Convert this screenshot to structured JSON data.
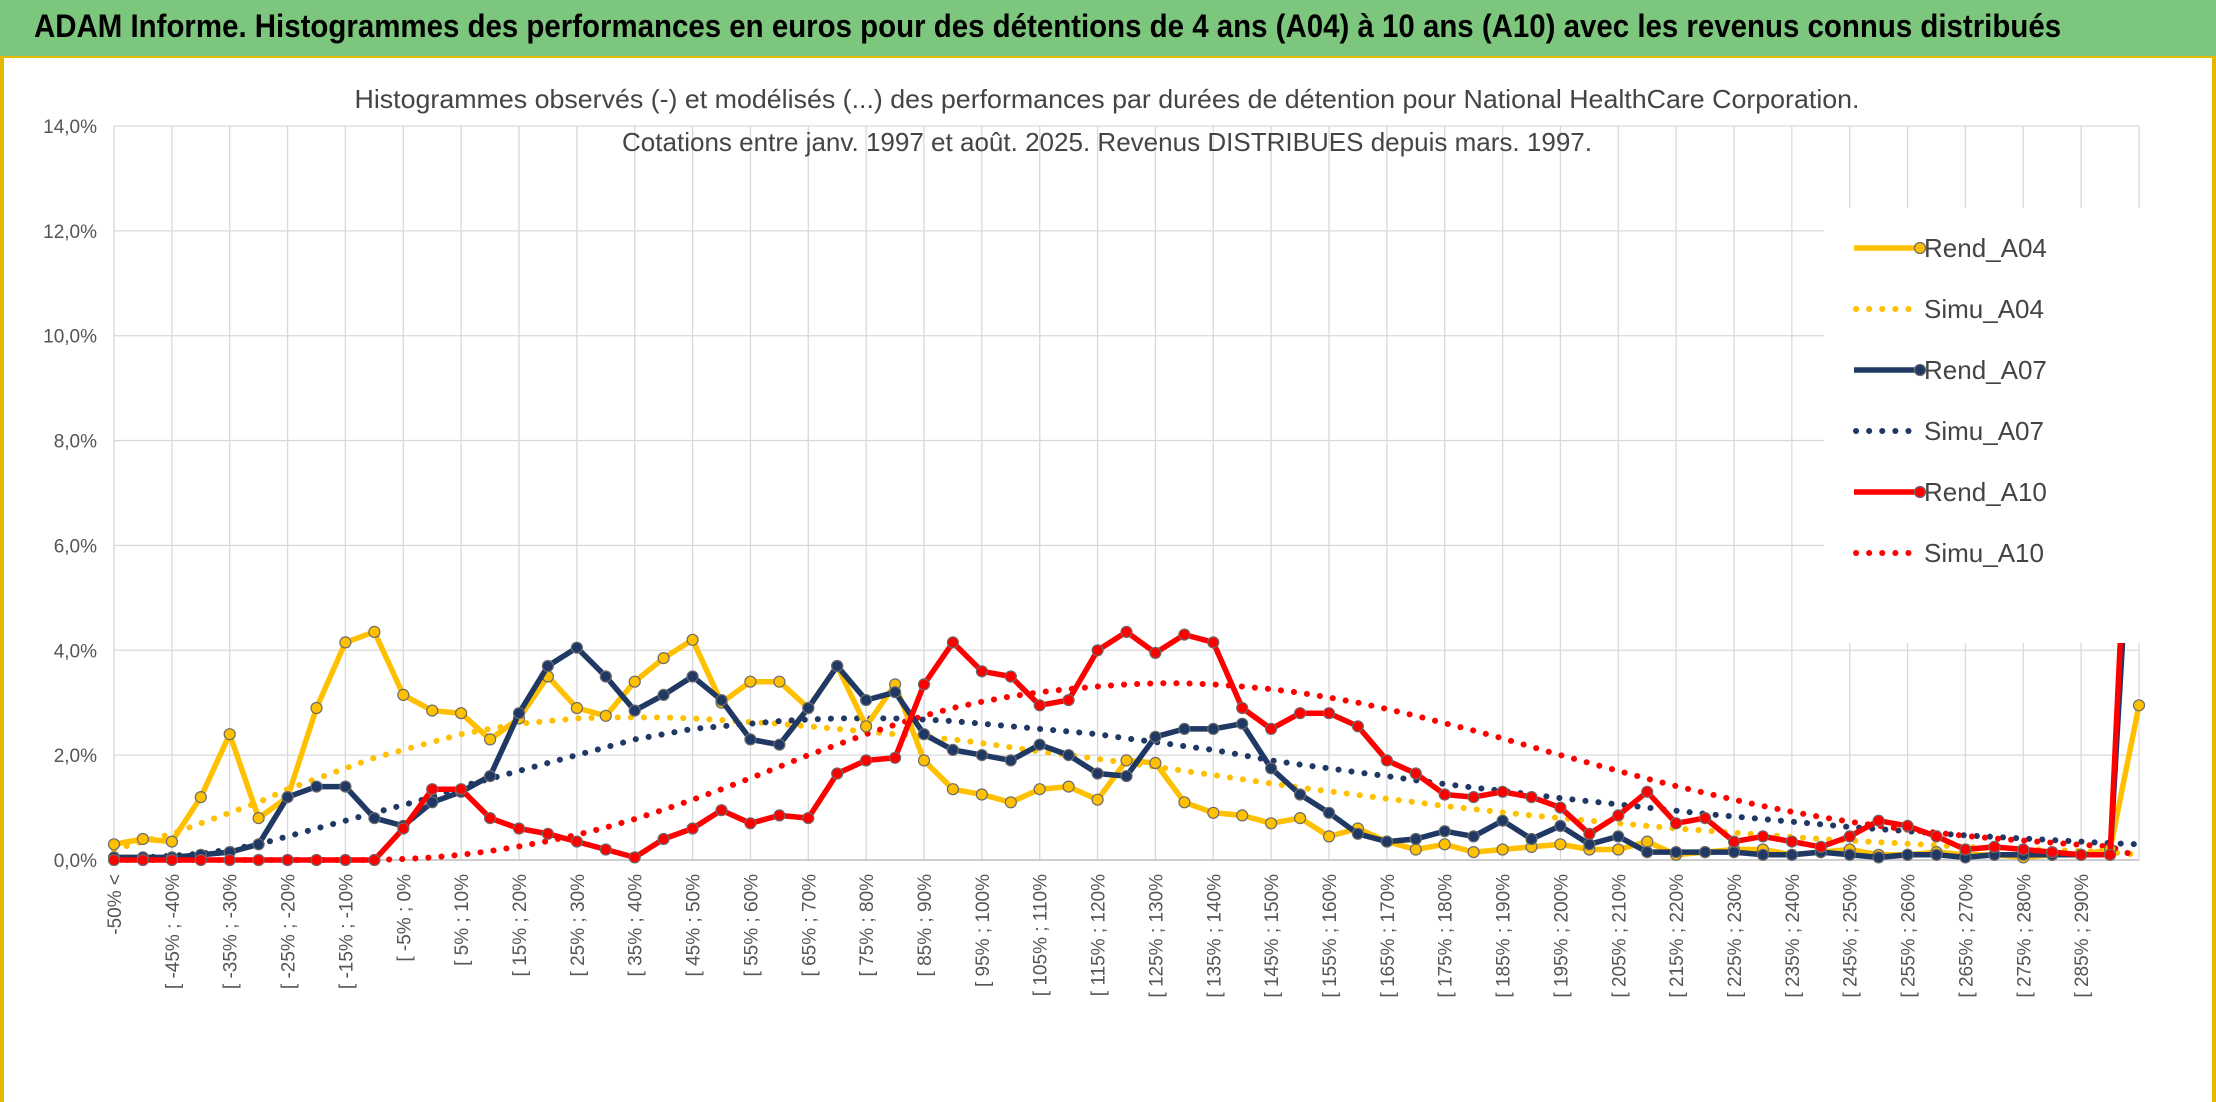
{
  "banner": {
    "title": "ADAM Informe. Histogrammes des performances en euros pour des détentions de 4 ans (A04) à 10 ans (A10) avec les revenus connus distribués"
  },
  "colors": {
    "a04": "#FFC000",
    "a07": "#1F3864",
    "a10": "#FF0000",
    "banner": "#7dc67d"
  },
  "chart_data": {
    "type": "line",
    "title": "Histogrammes observés (-) et modélisés (...) des performances par durées de détention pour National HealthCare Corporation.",
    "subtitle": "Cotations entre janv. 1997 et août. 2025. Revenus DISTRIBUES depuis mars. 1997.",
    "ylim": [
      0,
      14
    ],
    "yticks": [
      "0,0%",
      "2,0%",
      "4,0%",
      "6,0%",
      "8,0%",
      "10,0%",
      "12,0%",
      "14,0%"
    ],
    "grid": true,
    "legend_position": "right",
    "categories": [
      "-50% <",
      "[ -50% ; -45%",
      "[ -45% ; -40%",
      "[ -40% ; -35%",
      "[ -35% ; -30%",
      "[ -30% ; -25%",
      "[ -25% ; -20%",
      "[ -20% ; -15%",
      "[ -15% ; -10%",
      "[ -10% ; -5%",
      "[ -5% ; 0%",
      "[ 0% ; 5%",
      "[ 5% ; 10%",
      "[ 10% ; 15%",
      "[ 15% ; 20%",
      "[ 20% ; 25%",
      "[ 25% ; 30%",
      "[ 30% ; 35%",
      "[ 35% ; 40%",
      "[ 40% ; 45%",
      "[ 45% ; 50%",
      "[ 50% ; 55%",
      "[ 55% ; 60%",
      "[ 60% ; 65%",
      "[ 65% ; 70%",
      "[ 70% ; 75%",
      "[ 75% ; 80%",
      "[ 80% ; 85%",
      "[ 85% ; 90%",
      "[ 90% ; 95%",
      "[ 95% ; 100%",
      "[ 100% ; 105%",
      "[ 105% ; 110%",
      "[ 110% ; 115%",
      "[ 115% ; 120%",
      "[ 120% ; 125%",
      "[ 125% ; 130%",
      "[ 130% ; 135%",
      "[ 135% ; 140%",
      "[ 140% ; 145%",
      "[ 145% ; 150%",
      "[ 150% ; 155%",
      "[ 155% ; 160%",
      "[ 160% ; 165%",
      "[ 165% ; 170%",
      "[ 170% ; 175%",
      "[ 175% ; 180%",
      "[ 180% ; 185%",
      "[ 185% ; 190%",
      "[ 190% ; 195%",
      "[ 195% ; 200%",
      "[ 200% ; 205%",
      "[ 205% ; 210%",
      "[ 210% ; 215%",
      "[ 215% ; 220%",
      "[ 220% ; 225%",
      "[ 225% ; 230%",
      "[ 230% ; 235%",
      "[ 235% ; 240%",
      "[ 240% ; 245%",
      "[ 245% ; 250%",
      "[ 250% ; 255%",
      "[ 255% ; 260%",
      "[ 260% ; 265%",
      "[ 265% ; 270%",
      "[ 270% ; 275%",
      "[ 275% ; 280%",
      "[ 280% ; 285%",
      "[ 285% ; 290%",
      "[ 290% ; 295%",
      "295% <"
    ],
    "visible_tick_labels": [
      "-50% <",
      "[ -45% ; -40%",
      "[ -35% ; -30%",
      "[ -25% ; -20%",
      "[ -15% ; -10%",
      "[ -5% ; 0%",
      "[ 5% ; 10%",
      "[ 15% ; 20%",
      "[ 25% ; 30%",
      "[ 35% ; 40%",
      "[ 45% ; 50%",
      "[ 55% ; 60%",
      "[ 65% ; 70%",
      "[ 75% ; 80%",
      "[ 85% ; 90%",
      "[ 95% ; 100%",
      "[ 105% ; 110%",
      "[ 115% ; 120%",
      "[ 125% ; 130%",
      "[ 135% ; 140%",
      "[ 145% ; 150%",
      "[ 155% ; 160%",
      "[ 165% ; 170%",
      "[ 175% ; 180%",
      "[ 185% ; 190%",
      "[ 195% ; 200%",
      "[ 205% ; 210%",
      "[ 215% ; 220%",
      "[ 225% ; 230%",
      "[ 235% ; 240%",
      "[ 245% ; 250%",
      "[ 255% ; 260%",
      "[ 265% ; 270%",
      "[ 275% ; 280%",
      "[ 285% ; 290%"
    ],
    "series": [
      {
        "name": "Rend_A04",
        "style": "solid",
        "color": "#FFC000",
        "values": [
          0.3,
          0.4,
          0.35,
          1.2,
          2.4,
          0.8,
          1.2,
          2.9,
          4.15,
          4.35,
          3.15,
          2.85,
          2.8,
          2.3,
          2.7,
          3.5,
          2.9,
          2.75,
          3.4,
          3.85,
          4.2,
          3.0,
          3.4,
          3.4,
          2.9,
          3.7,
          2.55,
          3.35,
          1.9,
          1.35,
          1.25,
          1.1,
          1.35,
          1.4,
          1.15,
          1.9,
          1.85,
          1.1,
          0.9,
          0.85,
          0.7,
          0.8,
          0.45,
          0.6,
          0.35,
          0.2,
          0.3,
          0.15,
          0.2,
          0.25,
          0.3,
          0.2,
          0.2,
          0.35,
          0.1,
          0.15,
          0.2,
          0.2,
          0.1,
          0.15,
          0.2,
          0.1,
          0.1,
          0.15,
          0.1,
          0.1,
          0.05,
          0.1,
          0.1,
          0.2,
          2.95
        ]
      },
      {
        "name": "Simu_A04",
        "style": "dotted",
        "color": "#FFC000",
        "values": [
          0.2,
          0.35,
          0.5,
          0.7,
          0.9,
          1.1,
          1.35,
          1.55,
          1.75,
          1.95,
          2.1,
          2.25,
          2.4,
          2.5,
          2.6,
          2.65,
          2.7,
          2.72,
          2.72,
          2.72,
          2.7,
          2.67,
          2.63,
          2.6,
          2.55,
          2.5,
          2.45,
          2.4,
          2.35,
          2.3,
          2.23,
          2.15,
          2.07,
          2.0,
          1.93,
          1.85,
          1.78,
          1.7,
          1.62,
          1.54,
          1.46,
          1.38,
          1.31,
          1.24,
          1.17,
          1.1,
          1.03,
          0.97,
          0.91,
          0.85,
          0.8,
          0.75,
          0.7,
          0.65,
          0.6,
          0.56,
          0.52,
          0.48,
          0.44,
          0.4,
          0.37,
          0.34,
          0.31,
          0.28,
          0.25,
          0.23,
          0.21,
          0.19,
          0.17,
          0.15,
          0.1
        ]
      },
      {
        "name": "Rend_A07",
        "style": "solid",
        "color": "#1F3864",
        "values": [
          0.05,
          0.05,
          0.05,
          0.1,
          0.15,
          0.3,
          1.2,
          1.4,
          1.4,
          0.8,
          0.65,
          1.1,
          1.3,
          1.6,
          2.8,
          3.7,
          4.05,
          3.5,
          2.85,
          3.15,
          3.5,
          3.05,
          2.3,
          2.2,
          2.9,
          3.7,
          3.05,
          3.2,
          2.4,
          2.1,
          2.0,
          1.9,
          2.2,
          2.0,
          1.65,
          1.6,
          2.35,
          2.5,
          2.5,
          2.6,
          1.75,
          1.25,
          0.9,
          0.5,
          0.35,
          0.4,
          0.55,
          0.45,
          0.75,
          0.4,
          0.65,
          0.3,
          0.45,
          0.15,
          0.15,
          0.15,
          0.15,
          0.1,
          0.1,
          0.15,
          0.1,
          0.05,
          0.1,
          0.1,
          0.05,
          0.1,
          0.1,
          0.1,
          0.1,
          0.1,
          9.5
        ]
      },
      {
        "name": "Simu_A07",
        "style": "dotted",
        "color": "#1F3864",
        "values": [
          0.02,
          0.05,
          0.08,
          0.12,
          0.2,
          0.3,
          0.45,
          0.6,
          0.75,
          0.9,
          1.05,
          1.2,
          1.4,
          1.55,
          1.7,
          1.85,
          2.0,
          2.15,
          2.3,
          2.4,
          2.5,
          2.55,
          2.6,
          2.65,
          2.68,
          2.7,
          2.7,
          2.7,
          2.68,
          2.65,
          2.6,
          2.55,
          2.5,
          2.45,
          2.4,
          2.32,
          2.25,
          2.17,
          2.1,
          2.0,
          1.9,
          1.82,
          1.75,
          1.67,
          1.6,
          1.52,
          1.45,
          1.38,
          1.32,
          1.25,
          1.18,
          1.12,
          1.06,
          1.0,
          0.94,
          0.88,
          0.83,
          0.78,
          0.73,
          0.68,
          0.63,
          0.59,
          0.55,
          0.51,
          0.47,
          0.44,
          0.41,
          0.38,
          0.35,
          0.32,
          0.3
        ]
      },
      {
        "name": "Rend_A10",
        "style": "solid",
        "color": "#FF0000",
        "values": [
          0.0,
          0.0,
          0.0,
          0.0,
          0.0,
          0.0,
          0.0,
          0.0,
          0.0,
          0.0,
          0.6,
          1.35,
          1.35,
          0.8,
          0.6,
          0.5,
          0.35,
          0.2,
          0.05,
          0.4,
          0.6,
          0.95,
          0.7,
          0.85,
          0.8,
          1.65,
          1.9,
          1.95,
          3.35,
          4.15,
          3.6,
          3.5,
          2.95,
          3.05,
          4.0,
          4.35,
          3.95,
          4.3,
          4.15,
          2.9,
          2.5,
          2.8,
          2.8,
          2.55,
          1.9,
          1.65,
          1.25,
          1.2,
          1.3,
          1.2,
          1.0,
          0.5,
          0.85,
          1.3,
          0.7,
          0.8,
          0.35,
          0.45,
          0.35,
          0.25,
          0.45,
          0.75,
          0.65,
          0.45,
          0.2,
          0.25,
          0.2,
          0.15,
          0.1,
          0.1,
          11.65
        ]
      },
      {
        "name": "Simu_A10",
        "style": "dotted",
        "color": "#FF0000",
        "values": [
          0.0,
          0.0,
          0.0,
          0.0,
          0.0,
          0.0,
          0.0,
          0.0,
          0.0,
          0.0,
          0.02,
          0.05,
          0.1,
          0.17,
          0.26,
          0.36,
          0.48,
          0.62,
          0.78,
          0.96,
          1.15,
          1.35,
          1.56,
          1.78,
          2.0,
          2.2,
          2.4,
          2.58,
          2.75,
          2.9,
          3.02,
          3.12,
          3.2,
          3.26,
          3.31,
          3.35,
          3.37,
          3.37,
          3.35,
          3.31,
          3.26,
          3.19,
          3.1,
          3.0,
          2.88,
          2.75,
          2.61,
          2.47,
          2.32,
          2.16,
          2.0,
          1.85,
          1.7,
          1.55,
          1.41,
          1.28,
          1.15,
          1.03,
          0.92,
          0.82,
          0.73,
          0.65,
          0.58,
          0.52,
          0.46,
          0.41,
          0.37,
          0.33,
          0.29,
          0.26,
          0.05
        ]
      }
    ]
  }
}
